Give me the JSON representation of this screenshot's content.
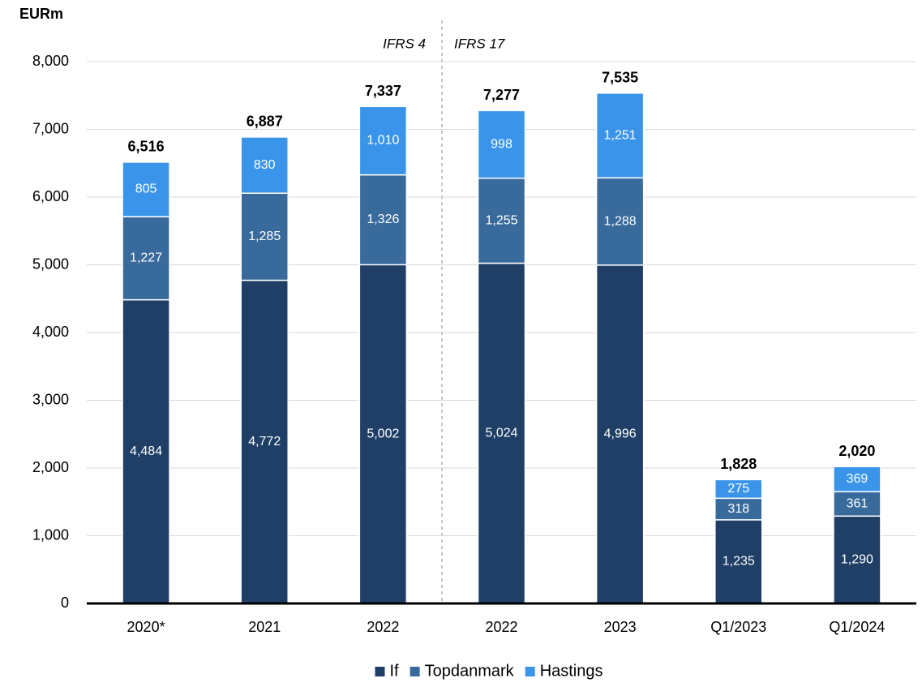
{
  "chart_data": {
    "type": "stacked_bar",
    "y_label": "EURm",
    "annotations": [
      "IFRS 4",
      "IFRS 17"
    ],
    "categories": [
      "2020*",
      "2021",
      "2022",
      "2022",
      "2023",
      "Q1/2023",
      "Q1/2024"
    ],
    "series": [
      {
        "name": "If",
        "color": "#1f3f66",
        "values": [
          4484,
          4772,
          5002,
          5024,
          4996,
          1235,
          1290
        ],
        "value_labels": [
          "4,484",
          "4,772",
          "5,002",
          "5,024",
          "4,996",
          "1,235",
          "1,290"
        ]
      },
      {
        "name": "Topdanmark",
        "color": "#386a9c",
        "values": [
          1227,
          1285,
          1326,
          1255,
          1288,
          318,
          361
        ],
        "value_labels": [
          "1,227",
          "1,285",
          "1,326",
          "1,255",
          "1,288",
          "318",
          "361"
        ]
      },
      {
        "name": "Hastings",
        "color": "#3a95ea",
        "values": [
          805,
          830,
          1010,
          998,
          1251,
          275,
          369
        ],
        "value_labels": [
          "805",
          "830",
          "1,010",
          "998",
          "1,251",
          "275",
          "369"
        ]
      }
    ],
    "totals": [
      6516,
      6887,
      7337,
      7277,
      7535,
      1828,
      2020
    ],
    "total_labels": [
      "6,516",
      "6,887",
      "7,337",
      "7,277",
      "7,535",
      "1,828",
      "2,020"
    ],
    "ylim": [
      0,
      8000
    ],
    "yticks": [
      0,
      {
        "value": 1000,
        "label": "1,000"
      },
      {
        "value": 2000,
        "label": "2,000"
      },
      {
        "value": 3000,
        "label": "3,000"
      },
      {
        "value": 4000,
        "label": "4,000"
      },
      {
        "value": 5000,
        "label": "5,000"
      },
      {
        "value": 6000,
        "label": "6,000"
      },
      {
        "value": 7000,
        "label": "7,000"
      },
      {
        "value": 8000,
        "label": "8,000"
      }
    ],
    "grid": true,
    "legend": "bottom"
  }
}
